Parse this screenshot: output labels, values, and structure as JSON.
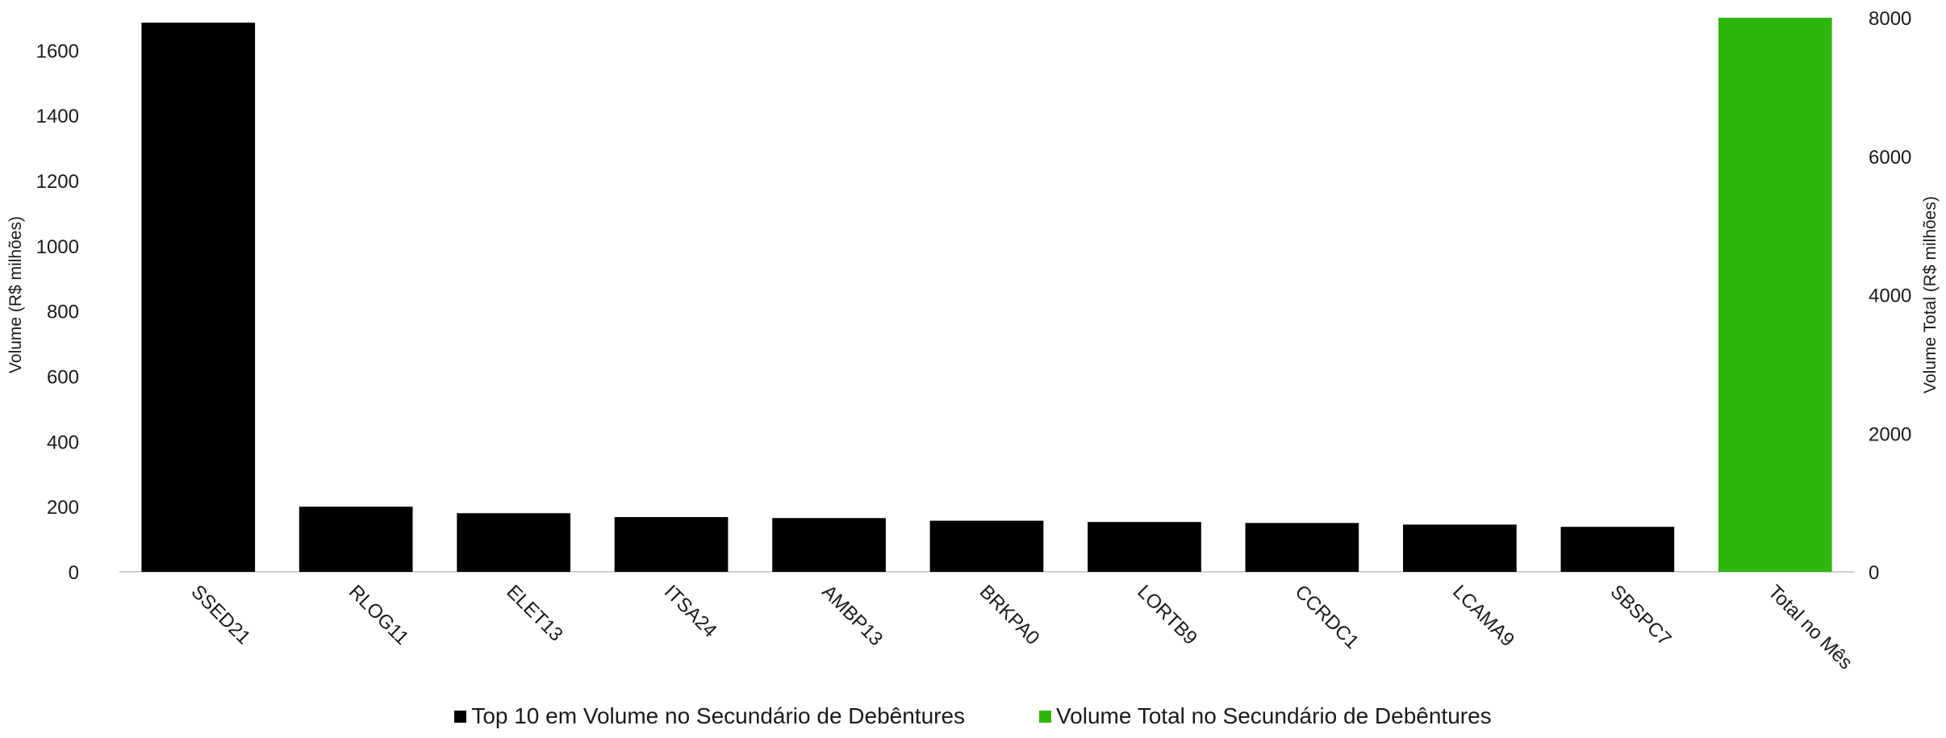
{
  "chart_data": {
    "type": "bar",
    "categories": [
      "SSED21",
      "RLOG11",
      "ELET13",
      "ITSA24",
      "AMBP13",
      "BRKPA0",
      "LORTB9",
      "CCRDC1",
      "LCAMA9",
      "SBSPC7",
      "Total no Mês"
    ],
    "series": [
      {
        "name": "Top 10 em Volume no Secundário de Debêntures",
        "axis": "left",
        "color": "#000000",
        "values": [
          1685,
          200,
          180,
          168,
          165,
          157,
          153,
          150,
          145,
          138,
          null
        ]
      },
      {
        "name": "Volume Total no Secundário de Debêntures",
        "axis": "right",
        "color": "#2eb60f",
        "values": [
          null,
          null,
          null,
          null,
          null,
          null,
          null,
          null,
          null,
          null,
          8000
        ]
      }
    ],
    "ylabel": "Volume (R$ milhões)",
    "y2label": "Volume Total (R$ milhões)",
    "ylim": [
      0,
      1700
    ],
    "yticks": [
      0,
      200,
      400,
      600,
      800,
      1000,
      1200,
      1400,
      1600
    ],
    "y2lim": [
      0,
      8000
    ],
    "y2ticks": [
      0,
      2000,
      4000,
      6000,
      8000
    ],
    "grid": false,
    "legend_position": "bottom",
    "xtick_rotation_deg": 45
  }
}
